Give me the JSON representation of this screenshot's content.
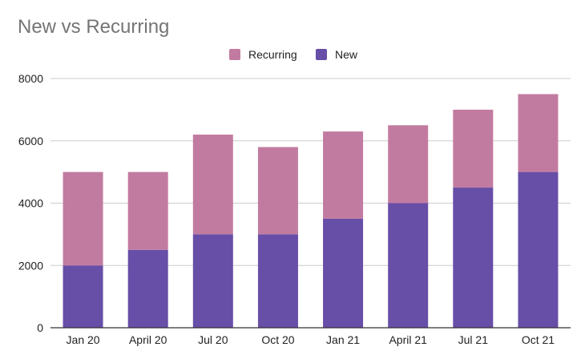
{
  "chart_data": {
    "type": "bar",
    "stacked": true,
    "title": "New vs Recurring",
    "xlabel": "",
    "ylabel": "",
    "categories": [
      "Jan 20",
      "April 20",
      "Jul 20",
      "Oct 20",
      "Jan 21",
      "April 21",
      "Jul 21",
      "Oct 21"
    ],
    "series": [
      {
        "name": "New",
        "values": [
          2000,
          2500,
          3000,
          3000,
          3500,
          4000,
          4500,
          5000
        ],
        "color": "#674EA7"
      },
      {
        "name": "Recurring",
        "values": [
          3000,
          2500,
          3200,
          2800,
          2800,
          2500,
          2500,
          2500
        ],
        "color": "#C27BA0"
      }
    ],
    "legend_order": [
      "Recurring",
      "New"
    ],
    "legend_position": "top",
    "ylim": [
      0,
      8000
    ],
    "yticks": [
      "0",
      "2000",
      "4000",
      "6000",
      "8000"
    ],
    "grid": true,
    "colors": {
      "title": "#757575",
      "gridline": "#cccccc",
      "baseline": "#333333",
      "text": "#222222"
    }
  }
}
